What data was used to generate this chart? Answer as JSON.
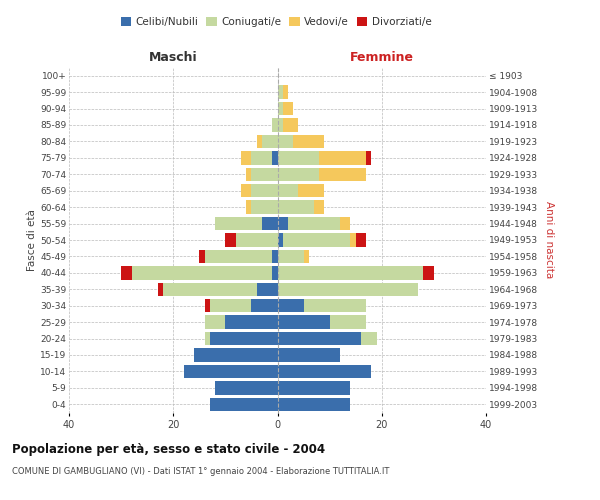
{
  "age_groups": [
    "0-4",
    "5-9",
    "10-14",
    "15-19",
    "20-24",
    "25-29",
    "30-34",
    "35-39",
    "40-44",
    "45-49",
    "50-54",
    "55-59",
    "60-64",
    "65-69",
    "70-74",
    "75-79",
    "80-84",
    "85-89",
    "90-94",
    "95-99",
    "100+"
  ],
  "birth_years": [
    "1999-2003",
    "1994-1998",
    "1989-1993",
    "1984-1988",
    "1979-1983",
    "1974-1978",
    "1969-1973",
    "1964-1968",
    "1959-1963",
    "1954-1958",
    "1949-1953",
    "1944-1948",
    "1939-1943",
    "1934-1938",
    "1929-1933",
    "1924-1928",
    "1919-1923",
    "1914-1918",
    "1909-1913",
    "1904-1908",
    "≤ 1903"
  ],
  "male": {
    "celibi": [
      13,
      12,
      18,
      16,
      13,
      10,
      5,
      4,
      1,
      1,
      0,
      3,
      0,
      0,
      0,
      1,
      0,
      0,
      0,
      0,
      0
    ],
    "coniugati": [
      0,
      0,
      0,
      0,
      1,
      4,
      8,
      18,
      27,
      13,
      8,
      9,
      5,
      5,
      5,
      4,
      3,
      1,
      0,
      0,
      0
    ],
    "vedovi": [
      0,
      0,
      0,
      0,
      0,
      0,
      0,
      0,
      0,
      0,
      0,
      0,
      1,
      2,
      1,
      2,
      1,
      0,
      0,
      0,
      0
    ],
    "divorziati": [
      0,
      0,
      0,
      0,
      0,
      0,
      1,
      1,
      2,
      1,
      2,
      0,
      0,
      0,
      0,
      0,
      0,
      0,
      0,
      0,
      0
    ]
  },
  "female": {
    "nubili": [
      14,
      14,
      18,
      12,
      16,
      10,
      5,
      0,
      0,
      0,
      1,
      2,
      0,
      0,
      0,
      0,
      0,
      0,
      0,
      0,
      0
    ],
    "coniugate": [
      0,
      0,
      0,
      0,
      3,
      7,
      12,
      27,
      28,
      5,
      13,
      10,
      7,
      4,
      8,
      8,
      3,
      1,
      1,
      1,
      0
    ],
    "vedove": [
      0,
      0,
      0,
      0,
      0,
      0,
      0,
      0,
      0,
      1,
      1,
      2,
      2,
      5,
      9,
      9,
      6,
      3,
      2,
      1,
      0
    ],
    "divorziate": [
      0,
      0,
      0,
      0,
      0,
      0,
      0,
      0,
      2,
      0,
      2,
      0,
      0,
      0,
      0,
      1,
      0,
      0,
      0,
      0,
      0
    ]
  },
  "colors": {
    "celibi": "#3a6eac",
    "coniugati": "#c5d9a0",
    "vedovi": "#f5c85c",
    "divorziati": "#cc1414"
  },
  "xlim": 40,
  "title": "Popolazione per età, sesso e stato civile - 2004",
  "subtitle": "COMUNE DI GAMBUGLIANO (VI) - Dati ISTAT 1° gennaio 2004 - Elaborazione TUTTITALIA.IT",
  "ylabel_left": "Fasce di età",
  "ylabel_right": "Anni di nascita",
  "xlabel_left": "Maschi",
  "xlabel_right": "Femmine",
  "bg_color": "#ffffff",
  "grid_color": "#bbbbbb"
}
